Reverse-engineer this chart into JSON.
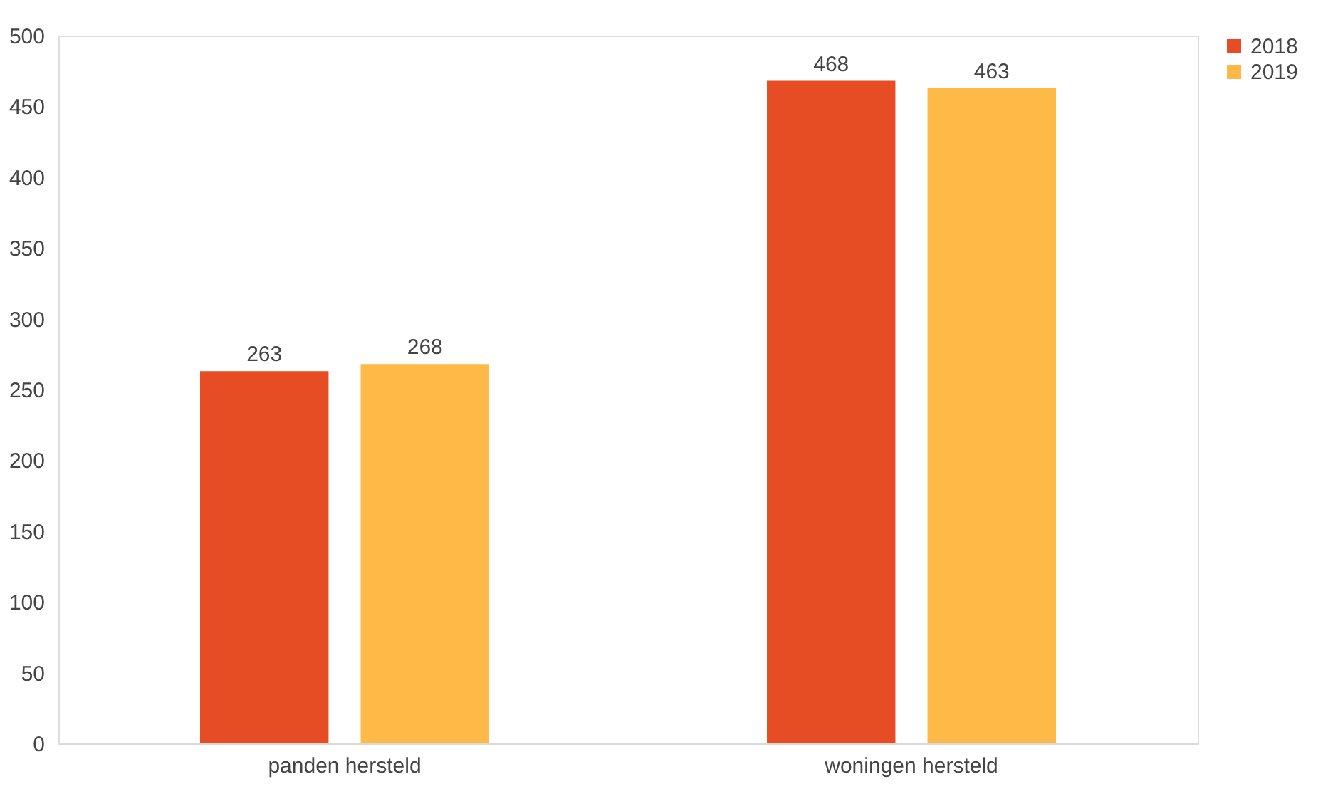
{
  "chart_data": {
    "type": "bar",
    "categories": [
      "panden hersteld",
      "woningen hersteld"
    ],
    "series": [
      {
        "name": "2018",
        "color": "#e64d24",
        "values": [
          263,
          468
        ]
      },
      {
        "name": "2019",
        "color": "#ffb946",
        "values": [
          268,
          463
        ]
      }
    ],
    "ylim": [
      0,
      500
    ],
    "yticks": [
      0,
      50,
      100,
      150,
      200,
      250,
      300,
      350,
      400,
      450,
      500
    ],
    "data_labels": true,
    "legend": "right",
    "grid": false
  }
}
